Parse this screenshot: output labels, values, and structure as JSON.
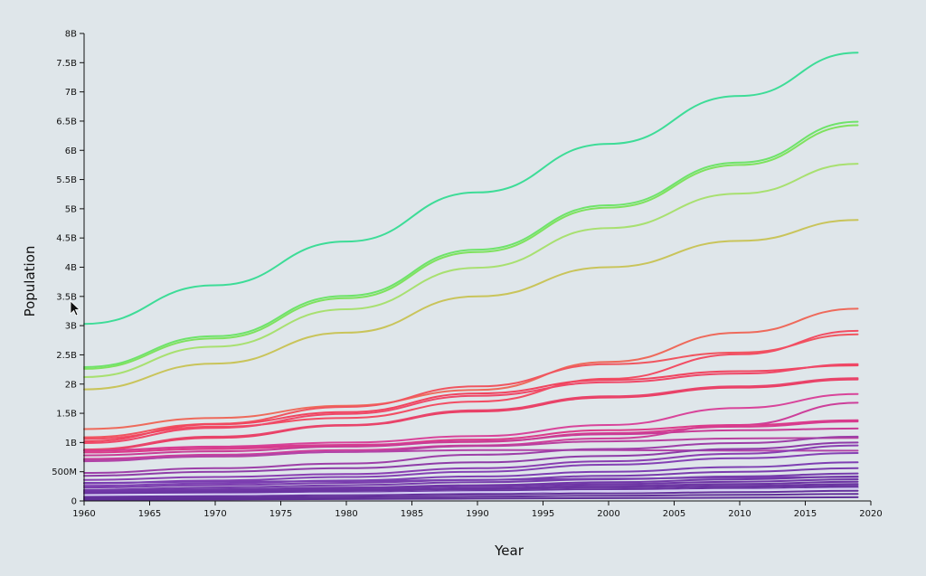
{
  "chart_data": {
    "type": "line",
    "title": "",
    "xlabel": "Year",
    "ylabel": "Population",
    "xlim": [
      1960,
      2020
    ],
    "ylim": [
      0,
      8000000000
    ],
    "grid": false,
    "legend": "none",
    "x_ticks": [
      1960,
      1965,
      1970,
      1975,
      1980,
      1985,
      1990,
      1995,
      2000,
      2005,
      2010,
      2015,
      2020
    ],
    "x_tick_labels": [
      "1960",
      "1965",
      "1970",
      "1975",
      "1980",
      "1985",
      "1990",
      "1995",
      "2000",
      "2005",
      "2010",
      "2015",
      "2020"
    ],
    "y_ticks": [
      0,
      500000000,
      1000000000,
      1500000000,
      2000000000,
      2500000000,
      3000000000,
      3500000000,
      4000000000,
      4500000000,
      5000000000,
      5500000000,
      6000000000,
      6500000000,
      7000000000,
      7500000000,
      8000000000
    ],
    "y_tick_labels": [
      "0",
      "500M",
      "1B",
      "1.5B",
      "2B",
      "2.5B",
      "3B",
      "3.5B",
      "4B",
      "4.5B",
      "5B",
      "5.5B",
      "6B",
      "6.5B",
      "7B",
      "7.5B",
      "8B"
    ],
    "x": [
      1960,
      1970,
      1980,
      1990,
      2000,
      2010,
      2019
    ],
    "series": [
      {
        "color": "#3ddc97",
        "values": [
          3030000000,
          3690000000,
          4440000000,
          5280000000,
          6110000000,
          6930000000,
          7670000000
        ]
      },
      {
        "color": "#6ee36a",
        "values": [
          2290000000,
          2820000000,
          3510000000,
          4300000000,
          5060000000,
          5790000000,
          6490000000
        ]
      },
      {
        "color": "#7fe25e",
        "values": [
          2260000000,
          2780000000,
          3470000000,
          4260000000,
          5020000000,
          5750000000,
          6430000000
        ]
      },
      {
        "color": "#a8e070",
        "values": [
          2120000000,
          2640000000,
          3280000000,
          3990000000,
          4670000000,
          5260000000,
          5770000000
        ]
      },
      {
        "color": "#c9c45a",
        "values": [
          1910000000,
          2350000000,
          2880000000,
          3500000000,
          4000000000,
          4450000000,
          4810000000
        ]
      },
      {
        "color": "#ee6a5b",
        "values": [
          1230000000,
          1420000000,
          1630000000,
          1900000000,
          2380000000,
          2880000000,
          3290000000
        ]
      },
      {
        "color": "#f0555f",
        "values": [
          1090000000,
          1320000000,
          1610000000,
          1960000000,
          2340000000,
          2540000000,
          2850000000
        ]
      },
      {
        "color": "#f24d63",
        "values": [
          1060000000,
          1270000000,
          1420000000,
          1700000000,
          2090000000,
          2510000000,
          2910000000
        ]
      },
      {
        "color": "#f0455f",
        "values": [
          1020000000,
          1310000000,
          1520000000,
          1840000000,
          2070000000,
          2220000000,
          2320000000
        ]
      },
      {
        "color": "#ef4868",
        "values": [
          990000000,
          1250000000,
          1490000000,
          1800000000,
          2030000000,
          2180000000,
          2340000000
        ]
      },
      {
        "color": "#ea3e64",
        "values": [
          870000000,
          1080000000,
          1290000000,
          1530000000,
          1770000000,
          1940000000,
          2080000000
        ]
      },
      {
        "color": "#e8456b",
        "values": [
          880000000,
          1100000000,
          1300000000,
          1550000000,
          1790000000,
          1960000000,
          2100000000
        ]
      },
      {
        "color": "#d8449a",
        "values": [
          860000000,
          930000000,
          1000000000,
          1110000000,
          1300000000,
          1590000000,
          1830000000
        ]
      },
      {
        "color": "#cc3f9a",
        "values": [
          720000000,
          790000000,
          870000000,
          950000000,
          1070000000,
          1300000000,
          1680000000
        ]
      },
      {
        "color": "#db3b8a",
        "values": [
          830000000,
          890000000,
          950000000,
          1050000000,
          1210000000,
          1300000000,
          1380000000
        ]
      },
      {
        "color": "#d63c8f",
        "values": [
          860000000,
          920000000,
          960000000,
          1010000000,
          1160000000,
          1270000000,
          1360000000
        ]
      },
      {
        "color": "#c83c96",
        "values": [
          780000000,
          850000000,
          930000000,
          1020000000,
          1140000000,
          1210000000,
          1240000000
        ]
      },
      {
        "color": "#b8409f",
        "values": [
          700000000,
          760000000,
          840000000,
          940000000,
          1020000000,
          1070000000,
          1080000000
        ]
      },
      {
        "color": "#b144a8",
        "values": [
          680000000,
          770000000,
          840000000,
          870000000,
          870000000,
          860000000,
          860000000
        ]
      },
      {
        "color": "#9d3fa8",
        "values": [
          480000000,
          560000000,
          640000000,
          790000000,
          890000000,
          990000000,
          1100000000
        ]
      },
      {
        "color": "#8e3ca8",
        "values": [
          430000000,
          500000000,
          560000000,
          660000000,
          770000000,
          890000000,
          1000000000
        ]
      },
      {
        "color": "#8a3fb2",
        "values": [
          360000000,
          410000000,
          460000000,
          560000000,
          680000000,
          810000000,
          950000000
        ]
      },
      {
        "color": "#8441b4",
        "values": [
          300000000,
          350000000,
          410000000,
          500000000,
          620000000,
          730000000,
          820000000
        ]
      },
      {
        "color": "#7e3fb3",
        "values": [
          260000000,
          300000000,
          350000000,
          420000000,
          500000000,
          580000000,
          660000000
        ]
      },
      {
        "color": "#7a3cae",
        "values": [
          230000000,
          270000000,
          310000000,
          360000000,
          430000000,
          500000000,
          560000000
        ]
      },
      {
        "color": "#753bab",
        "values": [
          190000000,
          230000000,
          270000000,
          320000000,
          370000000,
          420000000,
          470000000
        ]
      },
      {
        "color": "#7a3fb0",
        "values": [
          310000000,
          330000000,
          340000000,
          360000000,
          380000000,
          400000000,
          410000000
        ]
      },
      {
        "color": "#7138a8",
        "values": [
          170000000,
          200000000,
          230000000,
          270000000,
          320000000,
          370000000,
          420000000
        ]
      },
      {
        "color": "#6f36a6",
        "values": [
          150000000,
          180000000,
          210000000,
          250000000,
          290000000,
          330000000,
          370000000
        ]
      },
      {
        "color": "#6c35a3",
        "values": [
          130000000,
          160000000,
          190000000,
          220000000,
          260000000,
          290000000,
          330000000
        ]
      },
      {
        "color": "#6a34a1",
        "values": [
          110000000,
          140000000,
          170000000,
          200000000,
          230000000,
          260000000,
          290000000
        ]
      },
      {
        "color": "#6833a0",
        "values": [
          100000000,
          120000000,
          140000000,
          170000000,
          200000000,
          230000000,
          260000000
        ]
      },
      {
        "color": "#66329e",
        "values": [
          80000000,
          100000000,
          120000000,
          140000000,
          170000000,
          200000000,
          230000000
        ]
      },
      {
        "color": "#64319c",
        "values": [
          60000000,
          75000000,
          90000000,
          110000000,
          130000000,
          150000000,
          175000000
        ]
      },
      {
        "color": "#62309a",
        "values": [
          40000000,
          50000000,
          60000000,
          75000000,
          90000000,
          105000000,
          120000000
        ]
      },
      {
        "color": "#602f98",
        "values": [
          20000000,
          25000000,
          32000000,
          40000000,
          48000000,
          56000000,
          64000000
        ]
      },
      {
        "color": "#d7d3f5",
        "values": [
          100000000,
          115000000,
          130000000,
          150000000,
          170000000,
          190000000,
          210000000
        ]
      }
    ]
  },
  "cursor": {
    "icon": "arrow-cursor-icon"
  }
}
